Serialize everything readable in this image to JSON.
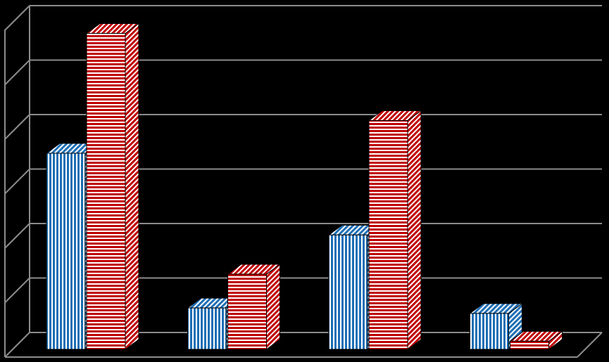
{
  "chart_data": {
    "type": "bar3d",
    "categories": [
      null,
      null,
      null,
      null
    ],
    "series": [
      {
        "color": "#1f6fb5",
        "values": [
          3.6,
          0.76,
          2.1,
          0.66
        ]
      },
      {
        "color": "#c00000",
        "values": [
          5.8,
          1.38,
          4.2,
          0.15
        ]
      }
    ],
    "ylim": [
      0,
      6
    ],
    "yticks": [
      0,
      1,
      2,
      3,
      4,
      5,
      6
    ],
    "grid": true
  }
}
